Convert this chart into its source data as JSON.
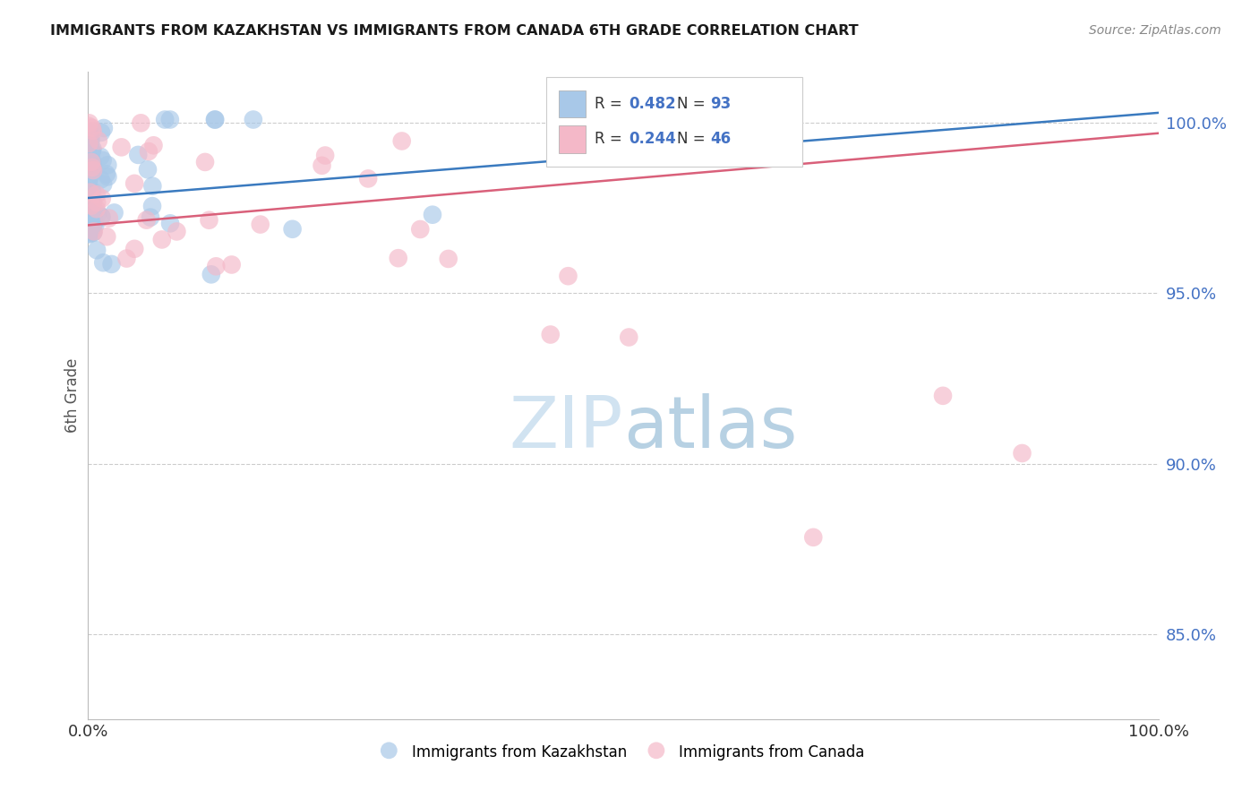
{
  "title": "IMMIGRANTS FROM KAZAKHSTAN VS IMMIGRANTS FROM CANADA 6TH GRADE CORRELATION CHART",
  "source": "Source: ZipAtlas.com",
  "ylabel": "6th Grade",
  "legend_label_1": "Immigrants from Kazakhstan",
  "legend_label_2": "Immigrants from Canada",
  "R1": 0.482,
  "N1": 93,
  "R2": 0.244,
  "N2": 46,
  "color1": "#a8c8e8",
  "color2": "#f4b8c8",
  "trendline_color1": "#3a7abf",
  "trendline_color2": "#d9607a",
  "yticks": [
    0.85,
    0.9,
    0.95,
    1.0
  ],
  "ytick_labels": [
    "85.0%",
    "90.0%",
    "95.0%",
    "100.0%"
  ],
  "xlim": [
    0.0,
    1.0
  ],
  "ylim": [
    0.825,
    1.015
  ],
  "background_color": "#ffffff",
  "grid_color": "#cccccc",
  "watermark_color": "#cce0f0",
  "title_fontsize": 12,
  "tick_fontsize": 13
}
